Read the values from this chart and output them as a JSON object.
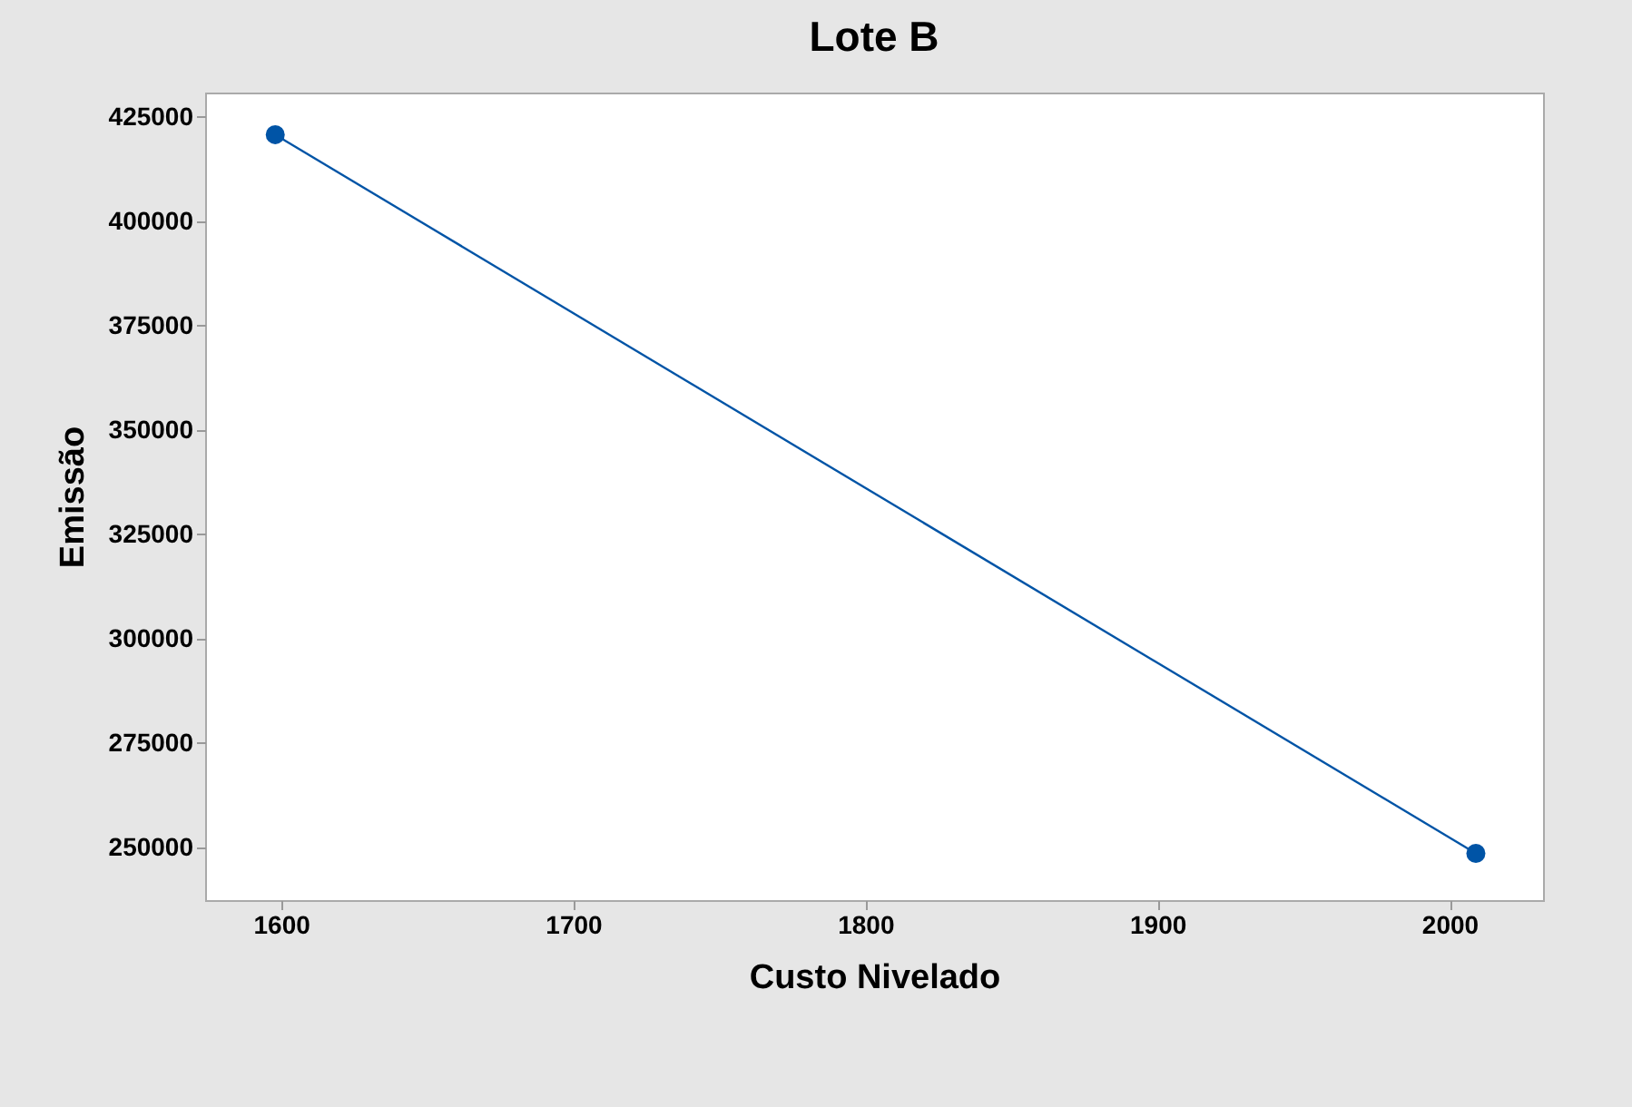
{
  "chart_data": {
    "type": "line",
    "title": "Lote B",
    "xlabel": "Custo Nivelado",
    "ylabel": "Emissão",
    "x": [
      1598,
      2009
    ],
    "series": [
      {
        "color": "#0054a6",
        "values": [
          420700,
          248500
        ]
      }
    ],
    "xlim": [
      1574,
      2032
    ],
    "xticks": [
      1600,
      1700,
      1800,
      1900,
      2000
    ],
    "ylim": [
      237300,
      430800
    ],
    "yticks": [
      250000,
      275000,
      300000,
      325000,
      350000,
      375000,
      400000,
      425000
    ],
    "marker": "circle",
    "grid": false,
    "legend": false
  }
}
